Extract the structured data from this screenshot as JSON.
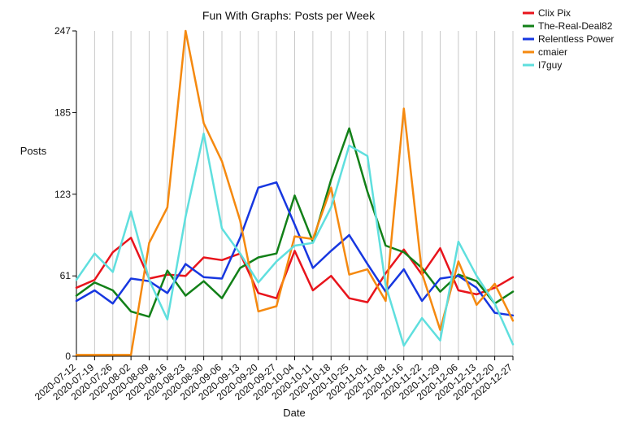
{
  "chart_data": {
    "type": "line",
    "title": "Fun With Graphs: Posts per Week",
    "xlabel": "Date",
    "ylabel": "Posts",
    "ylim": [
      0,
      247
    ],
    "yticks": [
      0,
      61,
      123,
      185,
      247
    ],
    "grid": "vertical",
    "legend_position": "top-right",
    "categories": [
      "2020-07-12",
      "2020-07-19",
      "2020-07-26",
      "2020-08-02",
      "2020-08-09",
      "2020-08-16",
      "2020-08-23",
      "2020-08-30",
      "2020-09-06",
      "2020-09-13",
      "2020-09-20",
      "2020-09-27",
      "2020-10-04",
      "2020-10-11",
      "2020-10-18",
      "2020-10-25",
      "2020-11-01",
      "2020-11-08",
      "2020-11-16",
      "2020-11-22",
      "2020-11-29",
      "2020-12-06",
      "2020-12-13",
      "2020-12-20",
      "2020-12-27"
    ],
    "series": [
      {
        "name": "Clix Pix",
        "color": "#e8141c",
        "values": [
          52,
          58,
          79,
          90,
          59,
          62,
          61,
          75,
          73,
          78,
          48,
          44,
          80,
          50,
          61,
          44,
          41,
          63,
          81,
          62,
          82,
          50,
          47,
          52,
          60
        ]
      },
      {
        "name": "The-Real-Deal82",
        "color": "#128018",
        "values": [
          46,
          56,
          50,
          34,
          30,
          65,
          46,
          57,
          44,
          67,
          75,
          78,
          122,
          87,
          134,
          173,
          125,
          84,
          79,
          67,
          49,
          62,
          57,
          40,
          49
        ]
      },
      {
        "name": "Relentless Power",
        "color": "#1737e0",
        "values": [
          42,
          50,
          40,
          59,
          57,
          48,
          70,
          60,
          59,
          90,
          128,
          132,
          100,
          67,
          80,
          92,
          70,
          49,
          66,
          42,
          59,
          61,
          52,
          33,
          31
        ]
      },
      {
        "name": "cmaier",
        "color": "#f5890f",
        "values": [
          1,
          1,
          1,
          1,
          86,
          113,
          247,
          177,
          148,
          103,
          34,
          38,
          91,
          89,
          128,
          62,
          66,
          42,
          188,
          63,
          20,
          72,
          39,
          55,
          27
        ]
      },
      {
        "name": "I7guy",
        "color": "#5fdfde",
        "values": [
          58,
          78,
          64,
          110,
          58,
          28,
          106,
          169,
          97,
          78,
          56,
          72,
          84,
          86,
          113,
          160,
          152,
          54,
          8,
          29,
          12,
          87,
          61,
          40,
          9
        ]
      }
    ]
  }
}
